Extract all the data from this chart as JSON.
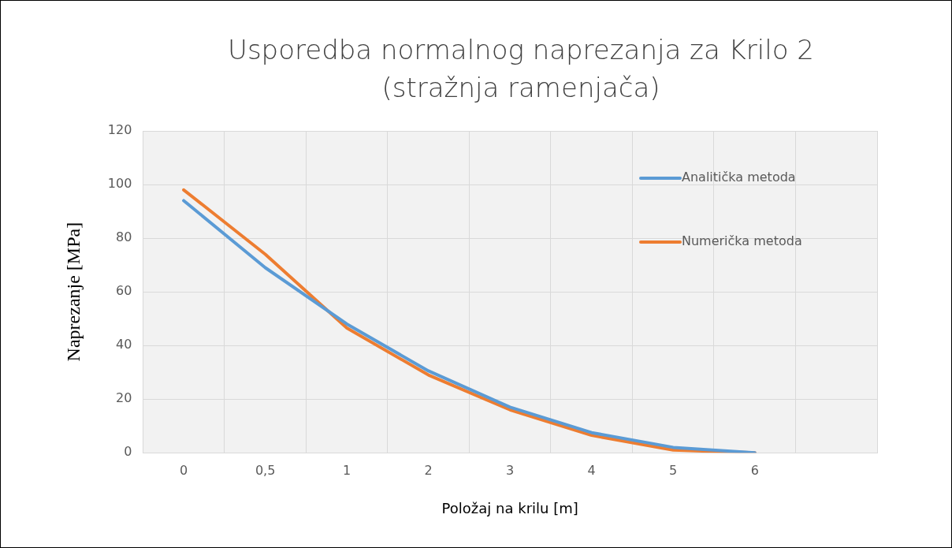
{
  "chart_data": {
    "type": "line",
    "title": "Usporedba normalnog naprezanja za Krilo 2 (stražnja ramenjača)",
    "xlabel": "Položaj na krilu [m]",
    "ylabel": "Naprezanje [MPa]",
    "categories": [
      "0",
      "0,5",
      "1",
      "2",
      "3",
      "4",
      "5",
      "6",
      null
    ],
    "series": [
      {
        "name": "Analitička metoda",
        "color": "#5b9bd5",
        "values": [
          94,
          69,
          48,
          30.5,
          17,
          7.5,
          2,
          0,
          null
        ]
      },
      {
        "name": "Numerička metoda",
        "color": "#ed7d31",
        "values": [
          98,
          74,
          46.5,
          29,
          16,
          6.5,
          1,
          0,
          null
        ]
      }
    ],
    "ylim": [
      0,
      120
    ],
    "yticks": [
      0,
      20,
      40,
      60,
      80,
      100,
      120
    ],
    "grid": true,
    "legend": "top right",
    "marker": "none",
    "line_style": "solid"
  }
}
